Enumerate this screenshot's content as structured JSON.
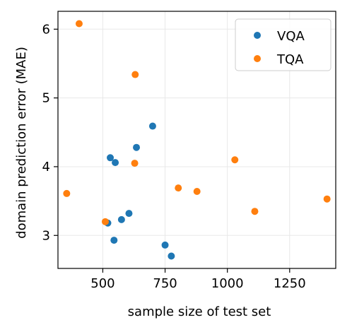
{
  "chart_data": {
    "type": "scatter",
    "title": "",
    "xlabel": "sample size of test set",
    "ylabel": "domain prediction error (MAE)",
    "xlim": [
      320,
      1435
    ],
    "ylim": [
      2.52,
      6.26
    ],
    "xticks": [
      500,
      750,
      1000,
      1250
    ],
    "yticks": [
      3,
      4,
      5,
      6
    ],
    "grid": true,
    "legend": "top-right",
    "series": [
      {
        "name": "VQA",
        "color": "#1f77b4",
        "points": [
          {
            "x": 700,
            "y": 4.59
          },
          {
            "x": 530,
            "y": 4.13
          },
          {
            "x": 550,
            "y": 4.06
          },
          {
            "x": 635,
            "y": 4.28
          },
          {
            "x": 605,
            "y": 3.32
          },
          {
            "x": 575,
            "y": 3.23
          },
          {
            "x": 520,
            "y": 3.18
          },
          {
            "x": 545,
            "y": 2.93
          },
          {
            "x": 750,
            "y": 2.86
          },
          {
            "x": 775,
            "y": 2.7
          }
        ]
      },
      {
        "name": "TQA",
        "color": "#ff7f0e",
        "points": [
          {
            "x": 405,
            "y": 6.08
          },
          {
            "x": 630,
            "y": 5.34
          },
          {
            "x": 628,
            "y": 4.05
          },
          {
            "x": 1030,
            "y": 4.1
          },
          {
            "x": 803,
            "y": 3.69
          },
          {
            "x": 878,
            "y": 3.64
          },
          {
            "x": 355,
            "y": 3.61
          },
          {
            "x": 1400,
            "y": 3.53
          },
          {
            "x": 1110,
            "y": 3.35
          },
          {
            "x": 510,
            "y": 3.2
          }
        ]
      }
    ]
  }
}
